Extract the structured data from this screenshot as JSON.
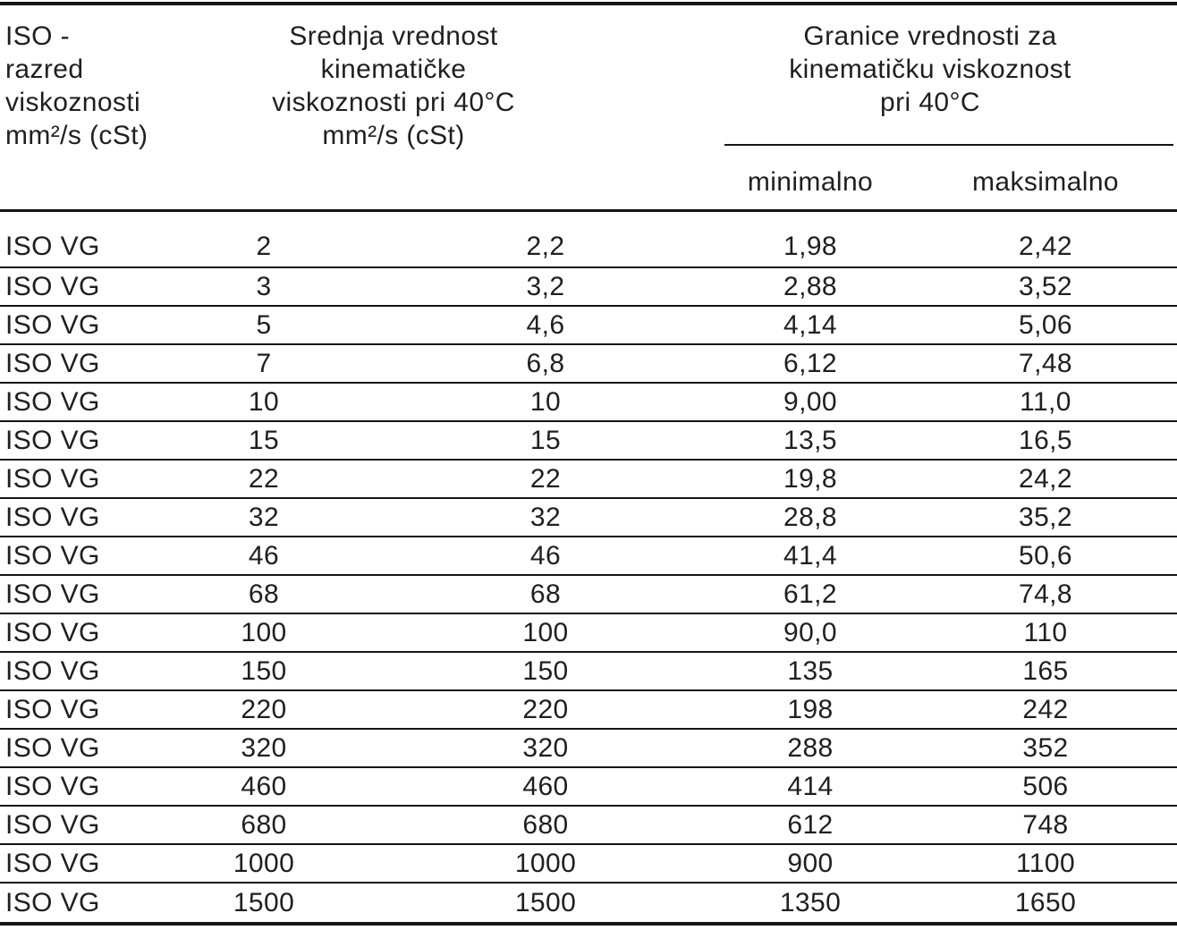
{
  "colors": {
    "background": "#ffffff",
    "text": "#1f1f1f",
    "rule": "#151515"
  },
  "table": {
    "col1_header_lines": [
      "ISO -",
      "razred",
      "viskoznosti",
      "mm²/s (cSt)"
    ],
    "col2_header_lines": [
      "Srednja vrednost",
      "kinematičke",
      "viskoznosti pri 40°C",
      "mm²/s (cSt)"
    ],
    "col3_header_lines": [
      "Granice vrednosti za",
      "kinematičku viskoznost",
      "pri 40°C"
    ],
    "subheaders": {
      "min": "minimalno",
      "max": "maksimalno"
    },
    "rows": [
      {
        "label": "ISO VG",
        "grade": "2",
        "mean": "2,2",
        "min": "1,98",
        "max": "2,42"
      },
      {
        "label": "ISO VG",
        "grade": "3",
        "mean": "3,2",
        "min": "2,88",
        "max": "3,52"
      },
      {
        "label": "ISO VG",
        "grade": "5",
        "mean": "4,6",
        "min": "4,14",
        "max": "5,06"
      },
      {
        "label": "ISO VG",
        "grade": "7",
        "mean": "6,8",
        "min": "6,12",
        "max": "7,48"
      },
      {
        "label": "ISO VG",
        "grade": "10",
        "mean": "10",
        "min": "9,00",
        "max": "11,0"
      },
      {
        "label": "ISO VG",
        "grade": "15",
        "mean": "15",
        "min": "13,5",
        "max": "16,5"
      },
      {
        "label": "ISO VG",
        "grade": "22",
        "mean": "22",
        "min": "19,8",
        "max": "24,2"
      },
      {
        "label": "ISO VG",
        "grade": "32",
        "mean": "32",
        "min": "28,8",
        "max": "35,2"
      },
      {
        "label": "ISO VG",
        "grade": "46",
        "mean": "46",
        "min": "41,4",
        "max": "50,6"
      },
      {
        "label": "ISO VG",
        "grade": "68",
        "mean": "68",
        "min": "61,2",
        "max": "74,8"
      },
      {
        "label": "ISO VG",
        "grade": "100",
        "mean": "100",
        "min": "90,0",
        "max": "110"
      },
      {
        "label": "ISO VG",
        "grade": "150",
        "mean": "150",
        "min": "135",
        "max": "165"
      },
      {
        "label": "ISO VG",
        "grade": "220",
        "mean": "220",
        "min": "198",
        "max": "242"
      },
      {
        "label": "ISO VG",
        "grade": "320",
        "mean": "320",
        "min": "288",
        "max": "352"
      },
      {
        "label": "ISO VG",
        "grade": "460",
        "mean": "460",
        "min": "414",
        "max": "506"
      },
      {
        "label": "ISO VG",
        "grade": "680",
        "mean": "680",
        "min": "612",
        "max": "748"
      },
      {
        "label": "ISO VG",
        "grade": "1000",
        "mean": "1000",
        "min": "900",
        "max": "1100"
      },
      {
        "label": "ISO VG",
        "grade": "1500",
        "mean": "1500",
        "min": "1350",
        "max": "1650"
      }
    ]
  }
}
